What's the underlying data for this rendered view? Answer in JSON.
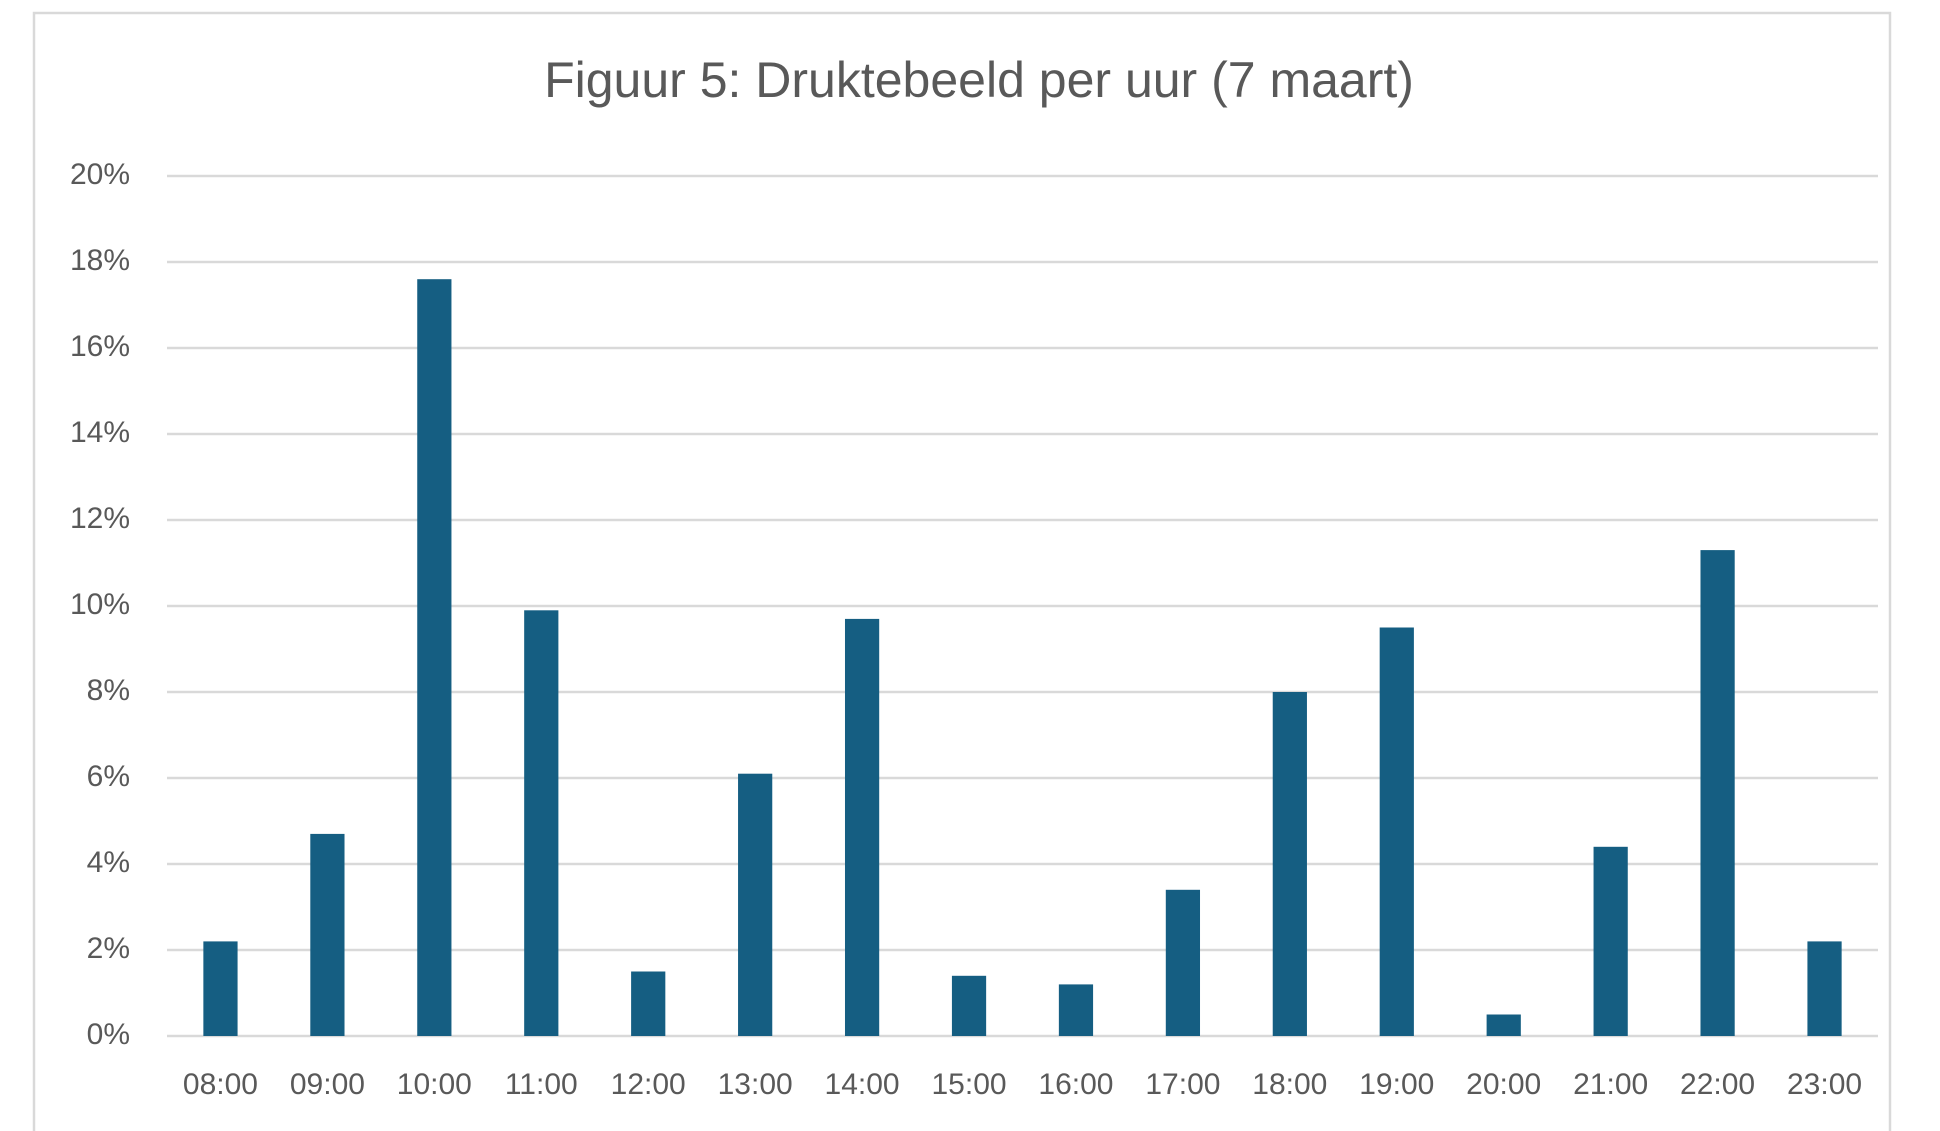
{
  "chart_data": {
    "type": "bar",
    "title": "Figuur 5: Druktebeeld per uur (7 maart)",
    "categories": [
      "08:00",
      "09:00",
      "10:00",
      "11:00",
      "12:00",
      "13:00",
      "14:00",
      "15:00",
      "16:00",
      "17:00",
      "18:00",
      "19:00",
      "20:00",
      "21:00",
      "22:00",
      "23:00"
    ],
    "values": [
      2.2,
      4.7,
      17.6,
      9.9,
      1.5,
      6.1,
      9.7,
      1.4,
      1.2,
      3.4,
      8.0,
      9.5,
      0.5,
      4.4,
      11.3,
      2.2
    ],
    "color": "#155e82",
    "ylim": [
      0,
      20
    ],
    "yticks": [
      {
        "value": 0,
        "label": "0%"
      },
      {
        "value": 2,
        "label": "2%"
      },
      {
        "value": 4,
        "label": "4%"
      },
      {
        "value": 6,
        "label": "6%"
      },
      {
        "value": 8,
        "label": "8%"
      },
      {
        "value": 10,
        "label": "10%"
      },
      {
        "value": 12,
        "label": "12%"
      },
      {
        "value": 14,
        "label": "14%"
      },
      {
        "value": 16,
        "label": "16%"
      },
      {
        "value": 18,
        "label": "18%"
      },
      {
        "value": 20,
        "label": "20%"
      }
    ],
    "grid": true
  }
}
